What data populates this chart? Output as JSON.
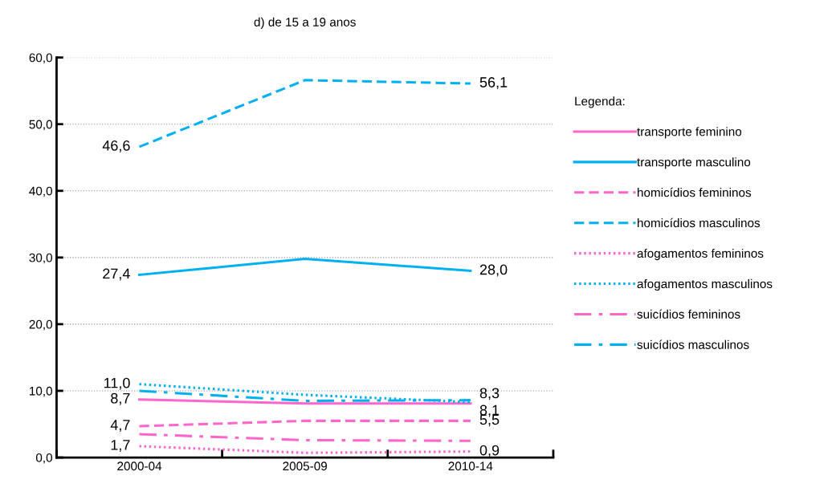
{
  "chart_data": {
    "type": "line",
    "title": "d) de 15 a 19 anos",
    "legend_title": "Legenda:",
    "legend": "right",
    "categories": [
      "2000-04",
      "2005-09",
      "2010-14"
    ],
    "ylim": [
      0,
      60
    ],
    "yticks": [
      {
        "value": 0,
        "label": "0,0"
      },
      {
        "value": 10,
        "label": "10,0"
      },
      {
        "value": 20,
        "label": "20,0"
      },
      {
        "value": 30,
        "label": "30,0"
      },
      {
        "value": 40,
        "label": "40,0"
      },
      {
        "value": 50,
        "label": "50,0"
      },
      {
        "value": 60,
        "label": "60,0"
      }
    ],
    "grid": "y",
    "series": [
      {
        "name": "transporte feminino",
        "color": "#ff66cc",
        "line_style": "solid",
        "values": [
          8.7,
          8.1,
          8.1
        ],
        "value_labels": [
          "8,7",
          null,
          "8,1"
        ]
      },
      {
        "name": "transporte masculino",
        "color": "#00b0f0",
        "line_style": "solid",
        "values": [
          27.4,
          29.8,
          28.0
        ],
        "value_labels": [
          "27,4",
          null,
          "28,0"
        ]
      },
      {
        "name": "homicídios femininos",
        "color": "#ff66cc",
        "line_style": "dashed",
        "values": [
          4.7,
          5.5,
          5.5
        ],
        "value_labels": [
          "4,7",
          null,
          "5,5"
        ]
      },
      {
        "name": "homicídios masculinos",
        "color": "#00b0f0",
        "line_style": "dashed",
        "values": [
          46.6,
          56.6,
          56.1
        ],
        "value_labels": [
          "46,6",
          null,
          "56,1"
        ]
      },
      {
        "name": "afogamentos femininos",
        "color": "#ff66cc",
        "line_style": "dotted",
        "values": [
          1.7,
          0.7,
          0.9
        ],
        "value_labels": [
          "1,7",
          null,
          "0,9"
        ]
      },
      {
        "name": "afogamentos masculinos",
        "color": "#00b0f0",
        "line_style": "dotted",
        "values": [
          11.0,
          9.4,
          8.3
        ],
        "value_labels": [
          "11,0",
          null,
          "8,3"
        ]
      },
      {
        "name": "suicídios femininos",
        "color": "#ff66cc",
        "line_style": "dashdot",
        "values": [
          3.5,
          2.6,
          2.5
        ]
      },
      {
        "name": "suicídios masculinos",
        "color": "#00b0f0",
        "line_style": "dashdot",
        "values": [
          10.0,
          8.5,
          8.6
        ]
      }
    ]
  }
}
